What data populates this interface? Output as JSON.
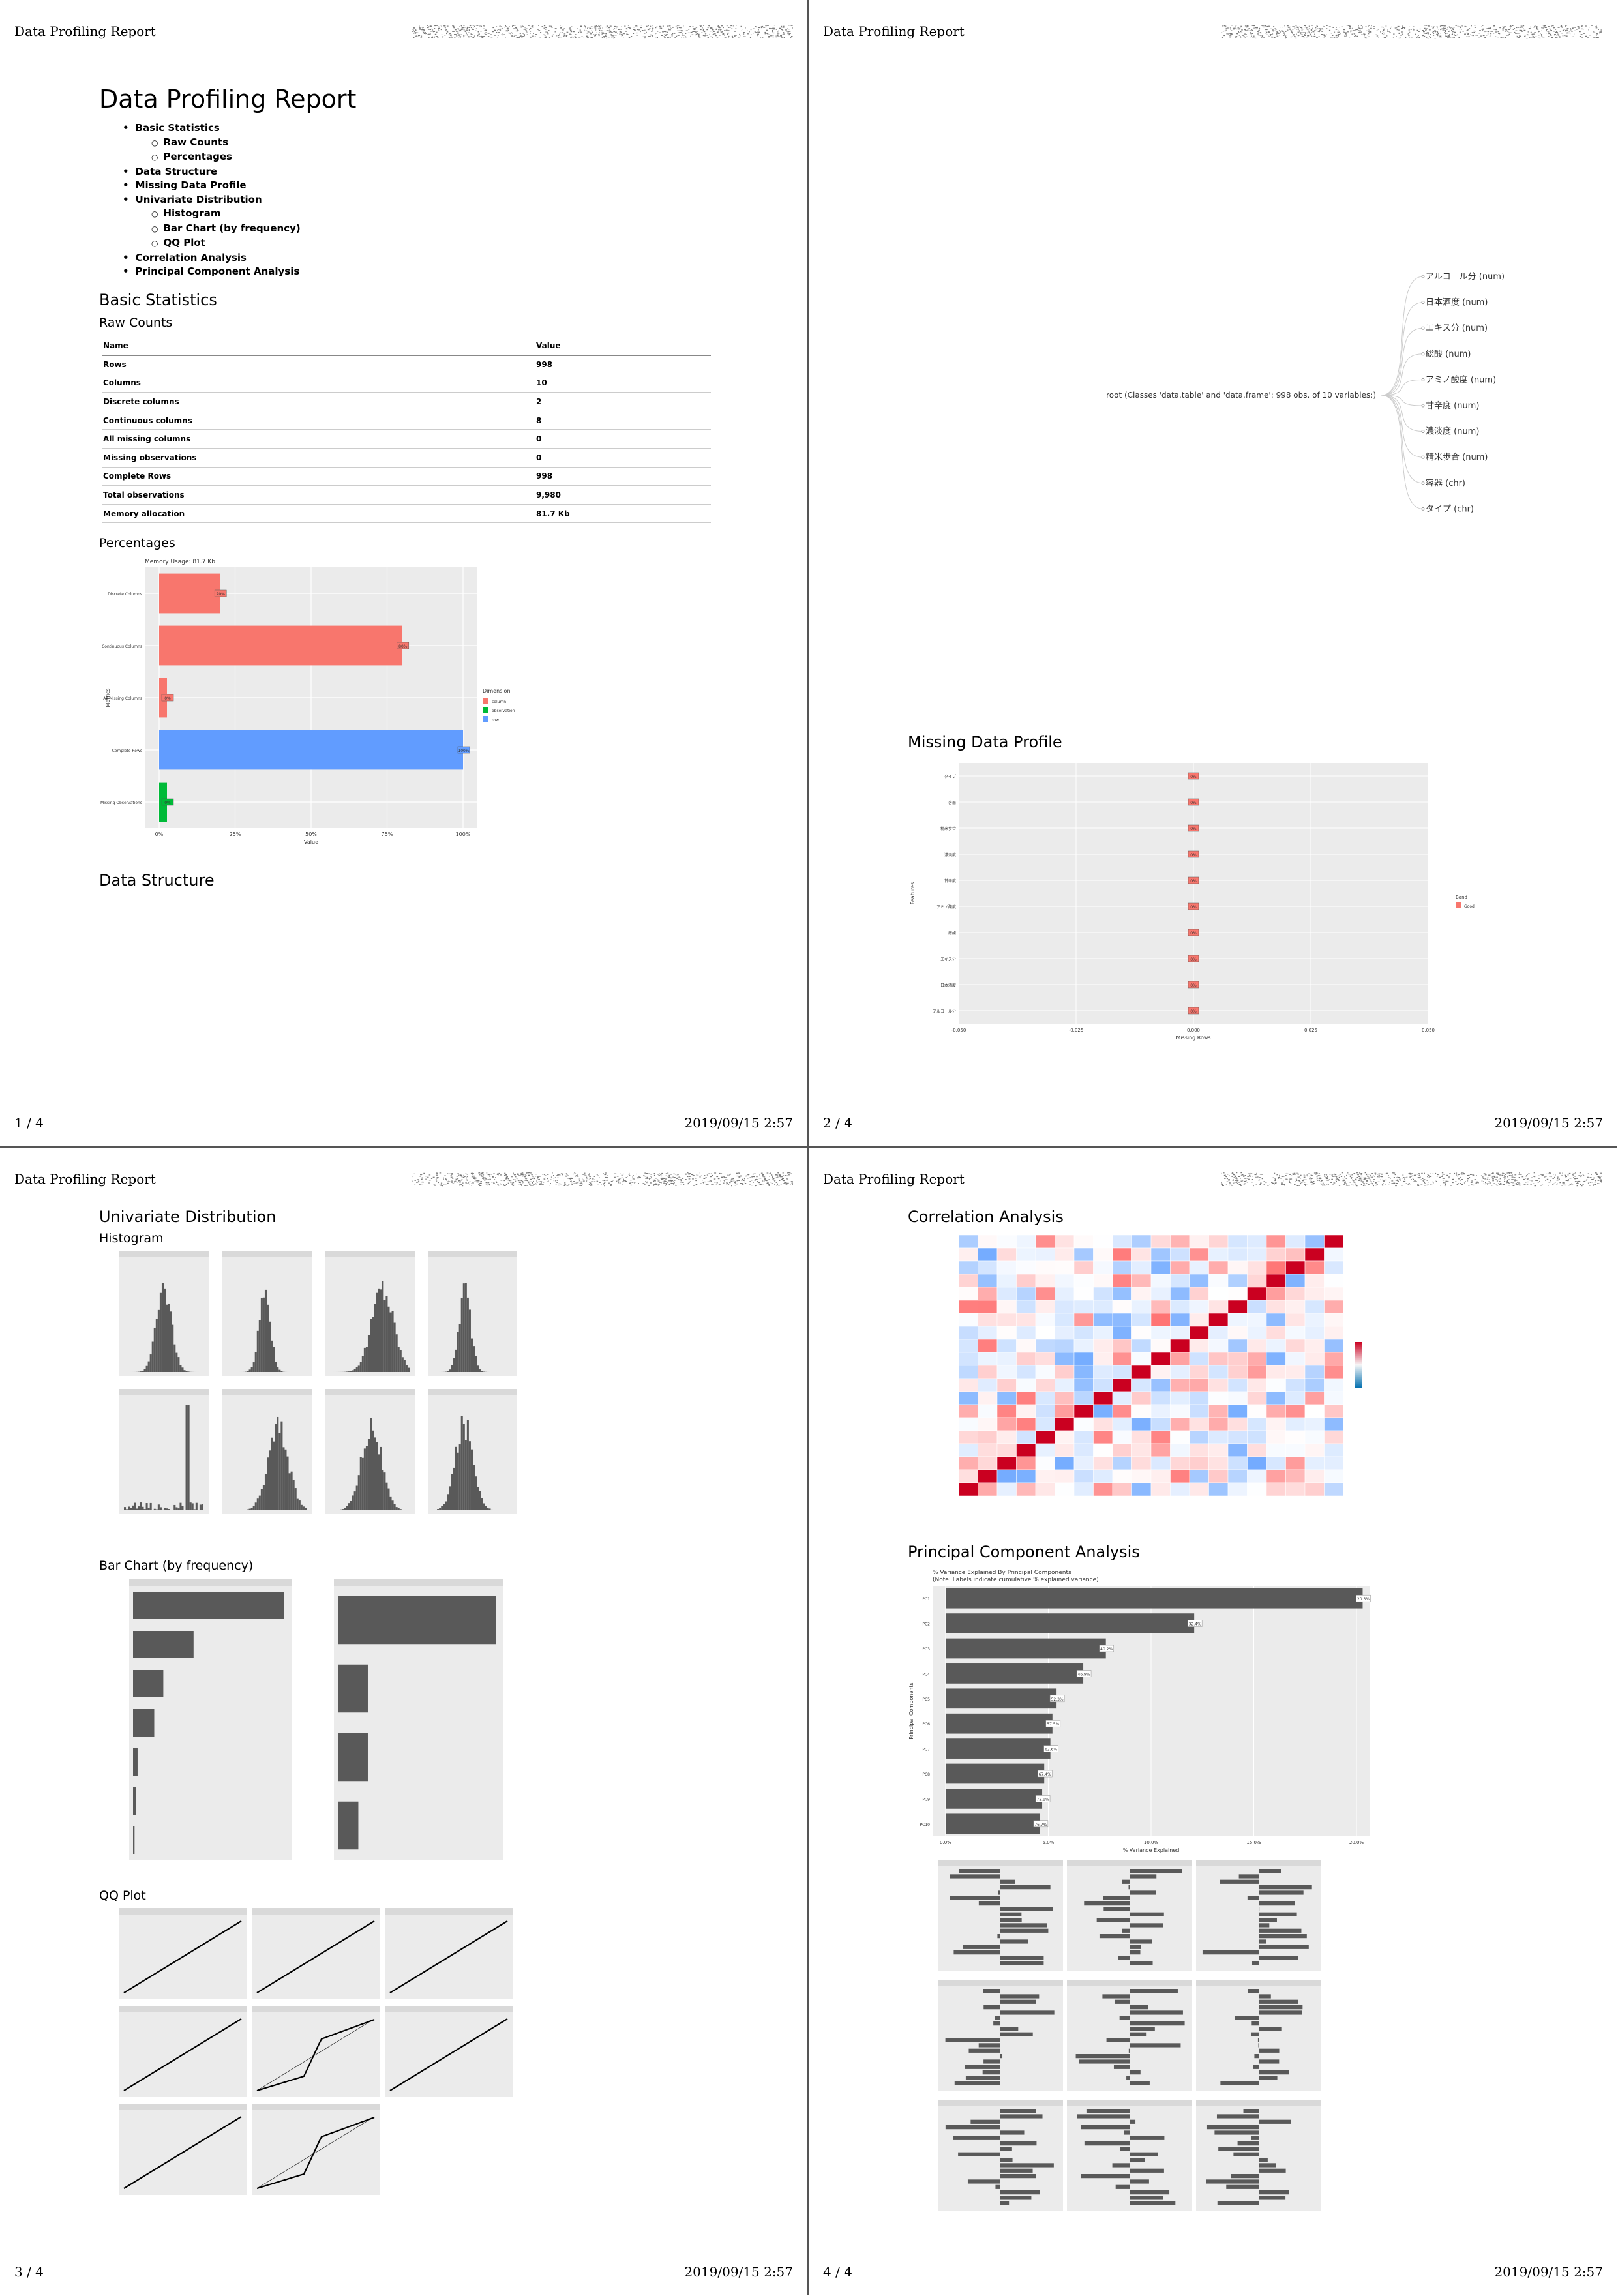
{
  "header": {
    "title": "Data Profiling Report"
  },
  "pages": [
    {
      "num": "1 / 4",
      "date": "2019/09/15 2:57"
    },
    {
      "num": "2 / 4",
      "date": "2019/09/15 2:57"
    },
    {
      "num": "3 / 4",
      "date": "2019/09/15 2:57"
    },
    {
      "num": "4 / 4",
      "date": "2019/09/15 2:57"
    }
  ],
  "report": {
    "title": "Data Profiling Report",
    "toc": [
      {
        "label": "Basic Statistics",
        "level": 1
      },
      {
        "label": "Raw Counts",
        "level": 2
      },
      {
        "label": "Percentages",
        "level": 2
      },
      {
        "label": "Data Structure",
        "level": 1
      },
      {
        "label": "Missing Data Profile",
        "level": 1
      },
      {
        "label": "Univariate Distribution",
        "level": 1
      },
      {
        "label": "Histogram",
        "level": 2
      },
      {
        "label": "Bar Chart (by frequency)",
        "level": 2
      },
      {
        "label": "QQ Plot",
        "level": 2
      },
      {
        "label": "Correlation Analysis",
        "level": 1
      },
      {
        "label": "Principal Component Analysis",
        "level": 1
      }
    ]
  },
  "basic_statistics": {
    "heading": "Basic Statistics",
    "raw_counts_heading": "Raw Counts",
    "table": {
      "columns": [
        "Name",
        "Value"
      ],
      "rows": [
        [
          "Rows",
          "998"
        ],
        [
          "Columns",
          "10"
        ],
        [
          "Discrete columns",
          "2"
        ],
        [
          "Continuous columns",
          "8"
        ],
        [
          "All missing columns",
          "0"
        ],
        [
          "Missing observations",
          "0"
        ],
        [
          "Complete Rows",
          "998"
        ],
        [
          "Total observations",
          "9,980"
        ],
        [
          "Memory allocation",
          "81.7 Kb"
        ]
      ]
    },
    "percentages_heading": "Percentages",
    "memory_label": "Memory Usage: 81.7 Kb"
  },
  "data_structure": {
    "heading": "Data Structure",
    "root": "root (Classes 'data.table' and 'data.frame': 998 obs. of 10 variables:)",
    "children": [
      "アルコ　ル分 (num)",
      "日本酒度 (num)",
      "エキス分 (num)",
      "総酸 (num)",
      "アミノ酸度 (num)",
      "甘辛度 (num)",
      "濃淡度 (num)",
      "精米歩合 (num)",
      "容器 (chr)",
      "タイプ (chr)"
    ]
  },
  "missing_profile": {
    "heading": "Missing Data Profile"
  },
  "univariate": {
    "heading": "Univariate Distribution",
    "histogram_heading": "Histogram",
    "bar_heading": "Bar Chart (by frequency)",
    "qq_heading": "QQ Plot"
  },
  "correlation": {
    "heading": "Correlation Analysis"
  },
  "pca": {
    "heading": "Principal Component Analysis",
    "subtitle_1": "% Variance Explained By Principal Components",
    "subtitle_2": "(Note: Labels indicate cumulative % explained variance)"
  },
  "chart_data": [
    {
      "type": "bar",
      "title": "Memory Usage: 81.7 Kb",
      "xlabel": "Value",
      "ylabel": "Metrics",
      "categories": [
        "Discrete Columns",
        "Continuous Columns",
        "All Missing Columns",
        "Complete Rows",
        "Missing Observations"
      ],
      "values": [
        20,
        80,
        0,
        100,
        0
      ],
      "data_labels": [
        "20%",
        "80%",
        "0%",
        "100%",
        "0%"
      ],
      "legend_title": "Dimension",
      "legend": [
        "column",
        "observation",
        "row"
      ],
      "colors": {
        "column": "#F8766D",
        "observation": "#00BA38",
        "row": "#619CFF"
      },
      "xlim": [
        0,
        100
      ],
      "x_ticks": [
        "0%",
        "25%",
        "50%",
        "75%",
        "100%"
      ]
    },
    {
      "type": "bar",
      "title": "",
      "xlabel": "Missing Rows",
      "ylabel": "Features",
      "categories": [
        "タイプ",
        "容器",
        "精米歩合",
        "濃淡度",
        "甘辛度",
        "アミノ酸度",
        "総酸",
        "エキス分",
        "日本酒度",
        "アルコール分"
      ],
      "values": [
        0,
        0,
        0,
        0,
        0,
        0,
        0,
        0,
        0,
        0
      ],
      "data_labels": [
        "0%",
        "0%",
        "0%",
        "0%",
        "0%",
        "0%",
        "0%",
        "0%",
        "0%",
        "0%"
      ],
      "legend_title": "Band",
      "legend": [
        "Good"
      ],
      "x_ticks": [
        "-0.050",
        "-0.025",
        "0.000",
        "0.025",
        "0.050"
      ]
    },
    {
      "type": "bar",
      "title": "% Variance Explained By Principal Components",
      "xlabel": "% Variance Explained",
      "ylabel": "Principal Components",
      "categories": [
        "PC1",
        "PC2",
        "PC3",
        "PC4",
        "PC5",
        "PC6",
        "PC7",
        "PC8",
        "PC9",
        "PC10"
      ],
      "values": [
        20.3,
        12.1,
        7.8,
        6.7,
        5.4,
        5.2,
        5.1,
        4.8,
        4.7,
        4.6
      ],
      "data_labels": [
        "20.3%",
        "32.4%",
        "40.2%",
        "46.9%",
        "52.3%",
        "57.5%",
        "62.6%",
        "67.4%",
        "72.1%",
        "76.7%"
      ],
      "xlim": [
        0,
        20
      ],
      "x_ticks": [
        "0.0%",
        "5.0%",
        "10.0%",
        "15.0%",
        "20.0%"
      ]
    }
  ]
}
